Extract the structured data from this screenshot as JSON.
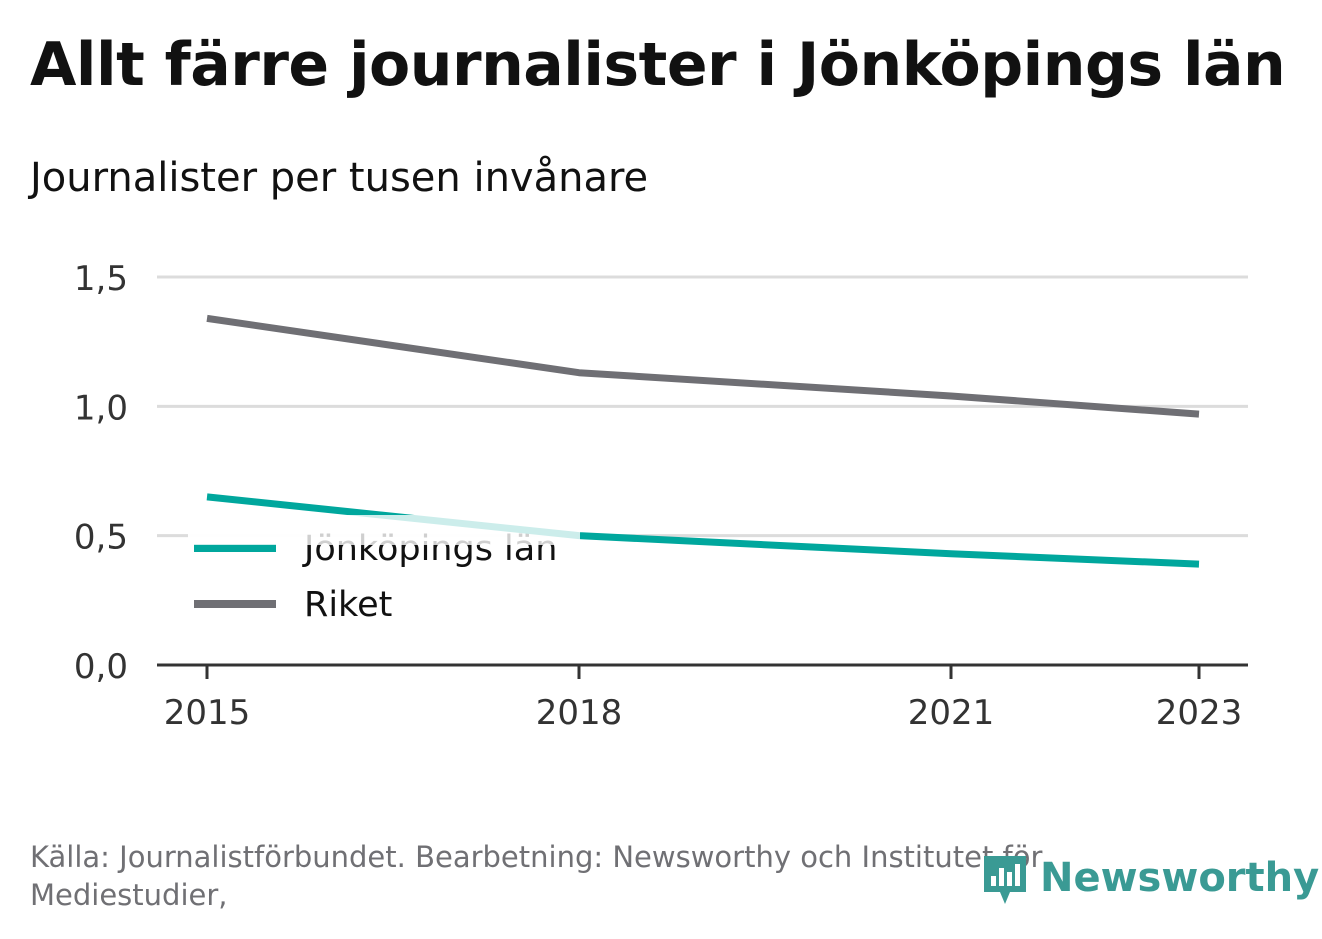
{
  "chart_data": {
    "type": "line",
    "title": "Allt färre journalister i Jönköpings län",
    "subtitle": "Journalister per tusen invånare",
    "x": [
      2015,
      2018,
      2021,
      2023
    ],
    "x_ticks": [
      "2015",
      "2018",
      "2021",
      "2023"
    ],
    "ylim": [
      0,
      1.5
    ],
    "y_ticks": [
      "0,0",
      "0,5",
      "1,0",
      "1,5"
    ],
    "y_tick_values": [
      0,
      0.5,
      1.0,
      1.5
    ],
    "grid": true,
    "legend_position": "lower-left",
    "series": [
      {
        "name": "Jönköpings län",
        "color": "#00a79d",
        "values": [
          0.65,
          0.5,
          0.43,
          0.39
        ]
      },
      {
        "name": "Riket",
        "color": "#6f6f74",
        "values": [
          1.34,
          1.13,
          1.04,
          0.97
        ]
      }
    ]
  },
  "source_text": "Källa: Journalistförbundet. Bearbetning: Newsworthy och Institutet för Mediestudier,",
  "brand": {
    "name": "Newsworthy",
    "color": "#3a9a94",
    "icon": "newsworthy-logo-icon"
  }
}
